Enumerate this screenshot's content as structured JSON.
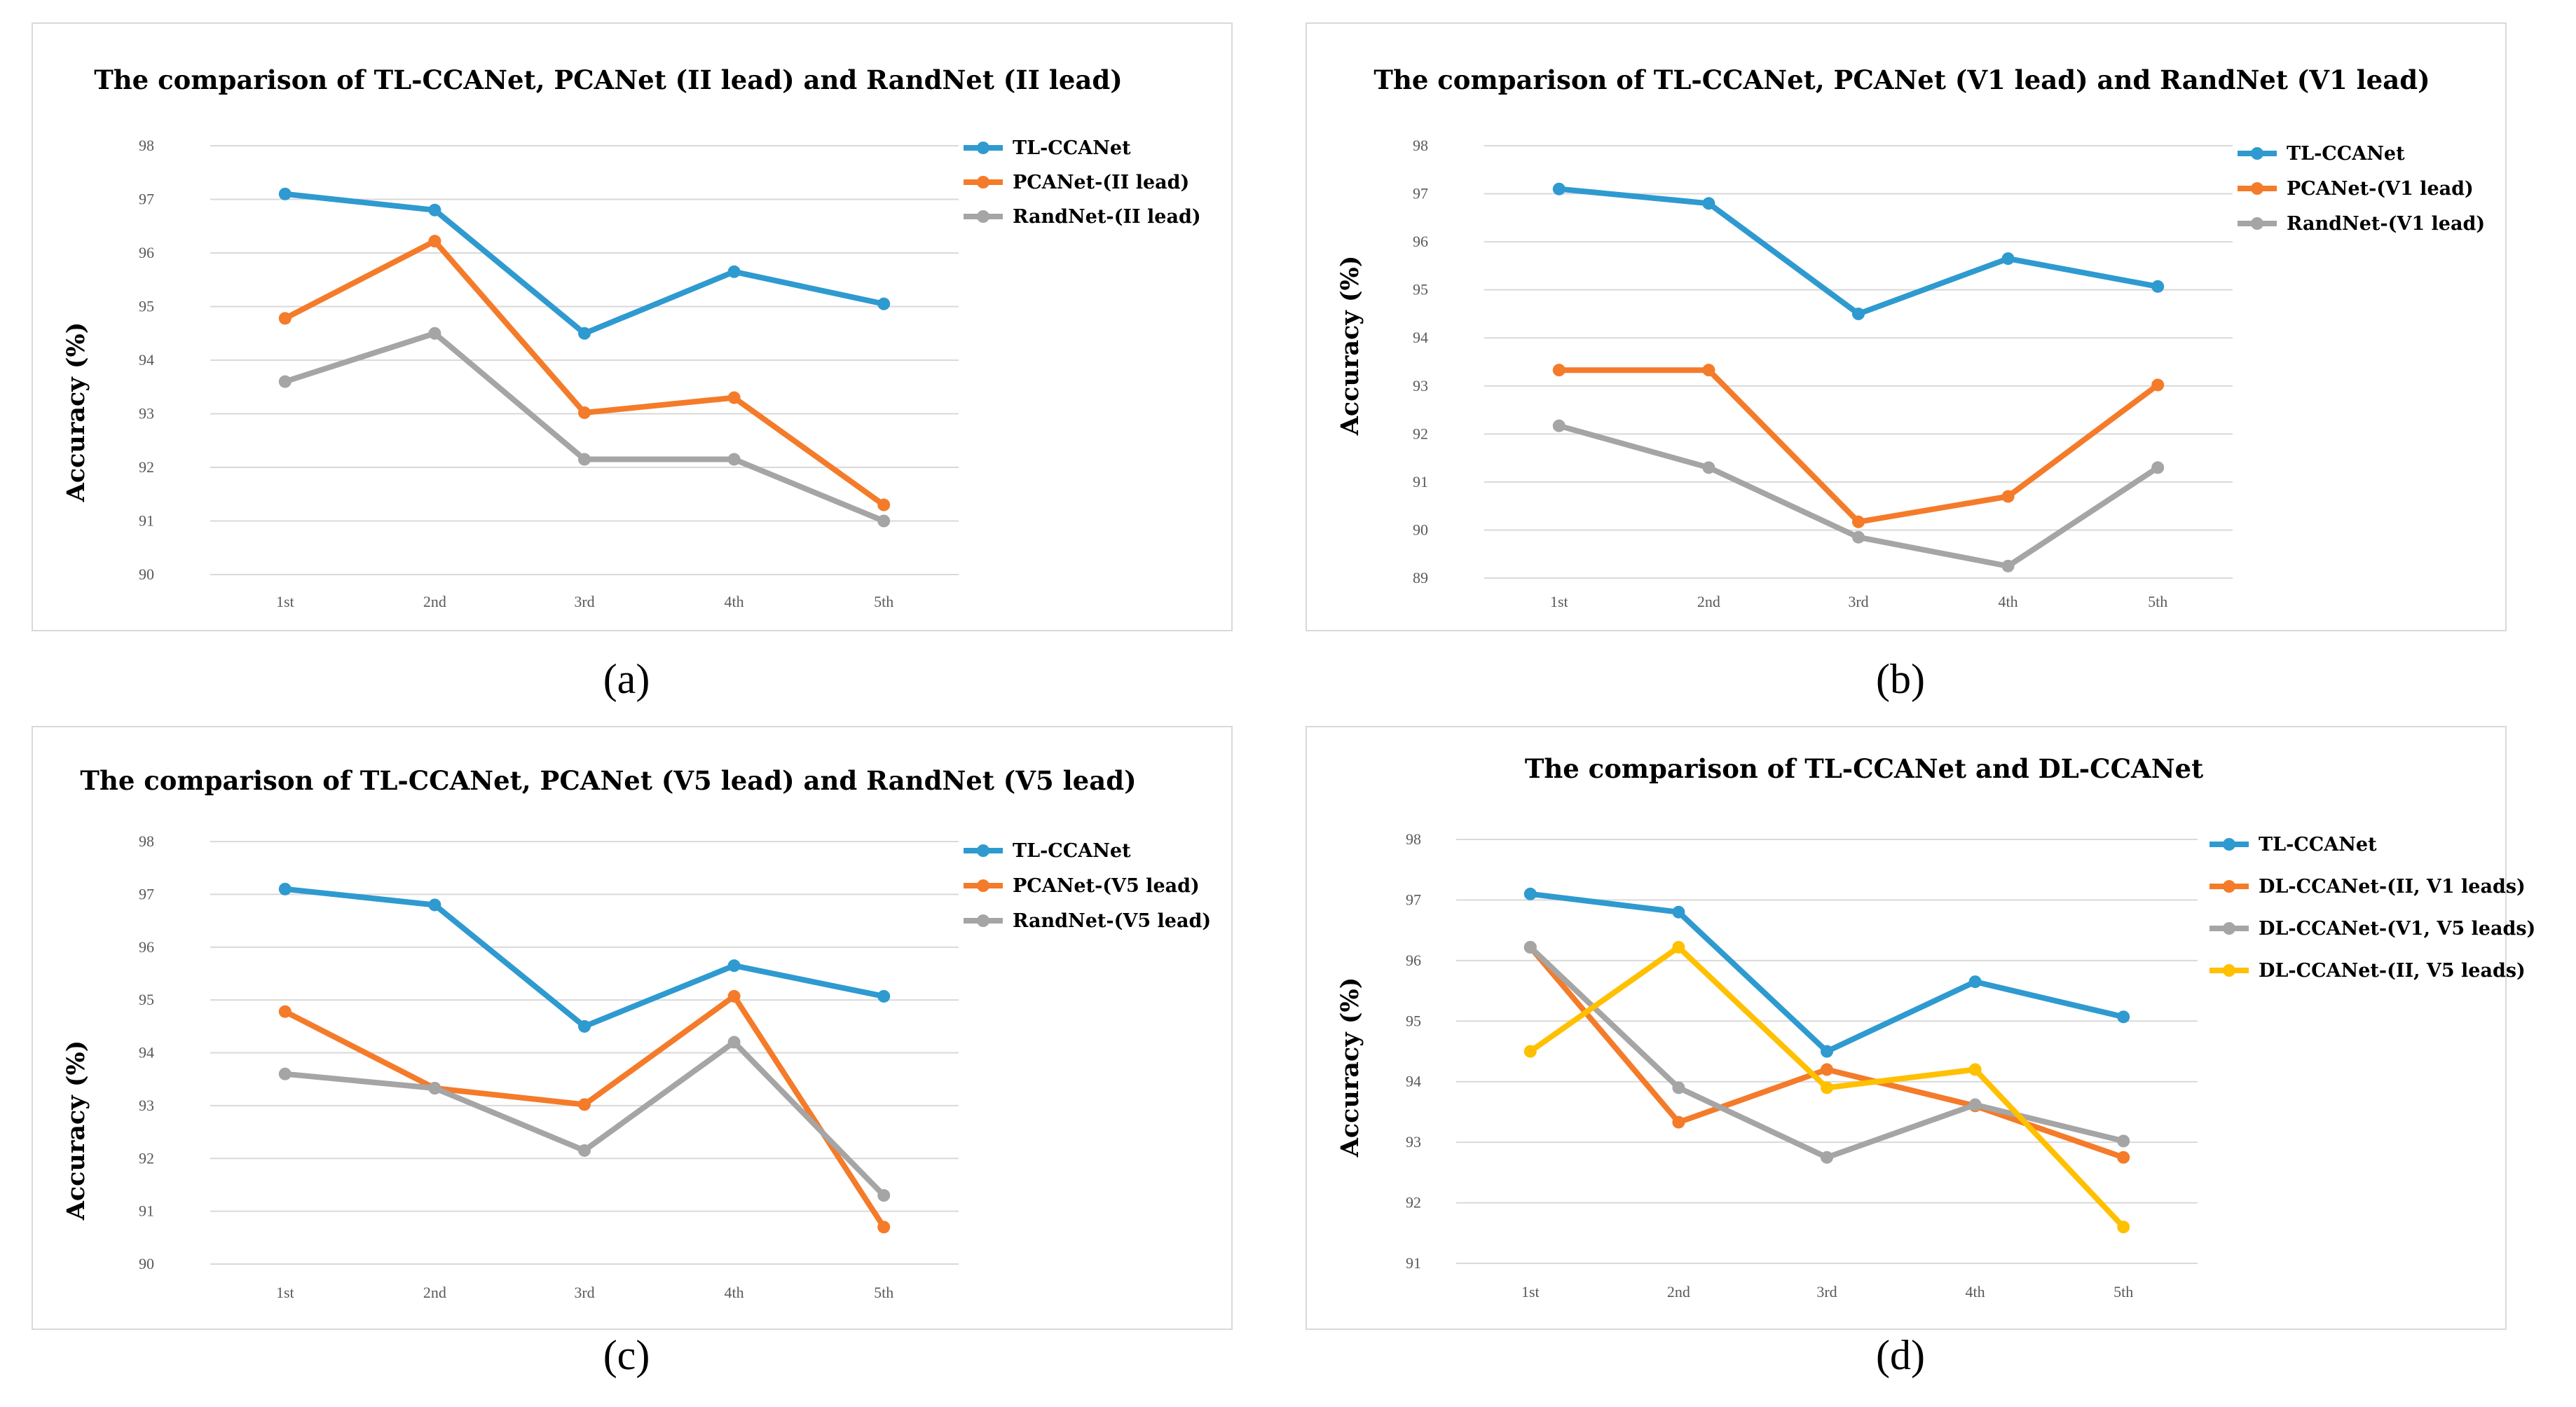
{
  "colors": {
    "blue": "#2e9ad0",
    "orange": "#f47b2a",
    "gray": "#a5a5a5",
    "yellow": "#ffc000"
  },
  "chart_data": [
    {
      "type": "line",
      "title": "The comparison of TL-CCANet, PCANet (II lead) and RandNet (II lead)",
      "ylabel": "Accuracy (%)",
      "xlabel": "",
      "categories": [
        "1st",
        "2nd",
        "3rd",
        "4th",
        "5th"
      ],
      "ylim": [
        90,
        98
      ],
      "yticks": [
        90,
        91,
        92,
        93,
        94,
        95,
        96,
        97,
        98
      ],
      "series": [
        {
          "name": "TL-CCANet",
          "color": "blue",
          "values": [
            97.1,
            96.8,
            94.5,
            95.65,
            95.05
          ]
        },
        {
          "name": "PCANet-(II lead)",
          "color": "orange",
          "values": [
            94.78,
            96.22,
            93.02,
            93.3,
            91.3
          ]
        },
        {
          "name": "RandNet-(II lead)",
          "color": "gray",
          "values": [
            93.6,
            94.5,
            92.15,
            92.15,
            91.0
          ]
        }
      ],
      "caption": "(a)"
    },
    {
      "type": "line",
      "title": "The comparison of TL-CCANet, PCANet (V1 lead) and RandNet (V1 lead)",
      "ylabel": "Accuracy (%)",
      "xlabel": "",
      "categories": [
        "1st",
        "2nd",
        "3rd",
        "4th",
        "5th"
      ],
      "ylim": [
        89,
        98
      ],
      "yticks": [
        89,
        90,
        91,
        92,
        93,
        94,
        95,
        96,
        97,
        98
      ],
      "series": [
        {
          "name": "TL-CCANet",
          "color": "blue",
          "values": [
            97.1,
            96.8,
            94.5,
            95.65,
            95.07
          ]
        },
        {
          "name": "PCANet-(V1 lead)",
          "color": "orange",
          "values": [
            93.33,
            93.33,
            90.17,
            90.7,
            93.02
          ]
        },
        {
          "name": "RandNet-(V1 lead)",
          "color": "gray",
          "values": [
            92.17,
            91.3,
            89.85,
            89.25,
            91.3
          ]
        }
      ],
      "caption": "(b)"
    },
    {
      "type": "line",
      "title": "The comparison of TL-CCANet, PCANet (V5 lead) and RandNet (V5 lead)",
      "ylabel": "Accuracy (%)",
      "xlabel": "",
      "categories": [
        "1st",
        "2nd",
        "3rd",
        "4th",
        "5th"
      ],
      "ylim": [
        90,
        98
      ],
      "yticks": [
        90,
        91,
        92,
        93,
        94,
        95,
        96,
        97,
        98
      ],
      "series": [
        {
          "name": "TL-CCANet",
          "color": "blue",
          "values": [
            97.1,
            96.8,
            94.5,
            95.65,
            95.07
          ]
        },
        {
          "name": "PCANet-(V5 lead)",
          "color": "orange",
          "values": [
            94.78,
            93.33,
            93.02,
            95.07,
            90.7
          ]
        },
        {
          "name": "RandNet-(V5 lead)",
          "color": "gray",
          "values": [
            93.6,
            93.33,
            92.15,
            94.2,
            91.3
          ]
        }
      ],
      "caption": "(c)"
    },
    {
      "type": "line",
      "title": "The comparison of TL-CCANet and DL-CCANet",
      "ylabel": "Accuracy (%)",
      "xlabel": "",
      "categories": [
        "1st",
        "2nd",
        "3rd",
        "4th",
        "5th"
      ],
      "ylim": [
        91,
        98
      ],
      "yticks": [
        91,
        92,
        93,
        94,
        95,
        96,
        97,
        98
      ],
      "series": [
        {
          "name": "TL-CCANet",
          "color": "blue",
          "values": [
            97.1,
            96.8,
            94.5,
            95.65,
            95.07
          ]
        },
        {
          "name": "DL-CCANet-(II, V1 leads)",
          "color": "orange",
          "values": [
            96.22,
            93.33,
            94.2,
            93.6,
            92.75
          ]
        },
        {
          "name": "DL-CCANet-(V1, V5 leads)",
          "color": "gray",
          "values": [
            96.22,
            93.9,
            92.75,
            93.62,
            93.02
          ]
        },
        {
          "name": "DL-CCANet-(II, V5 leads)",
          "color": "yellow",
          "values": [
            94.5,
            96.22,
            93.9,
            94.2,
            91.6
          ]
        }
      ],
      "caption": "(d)"
    }
  ]
}
